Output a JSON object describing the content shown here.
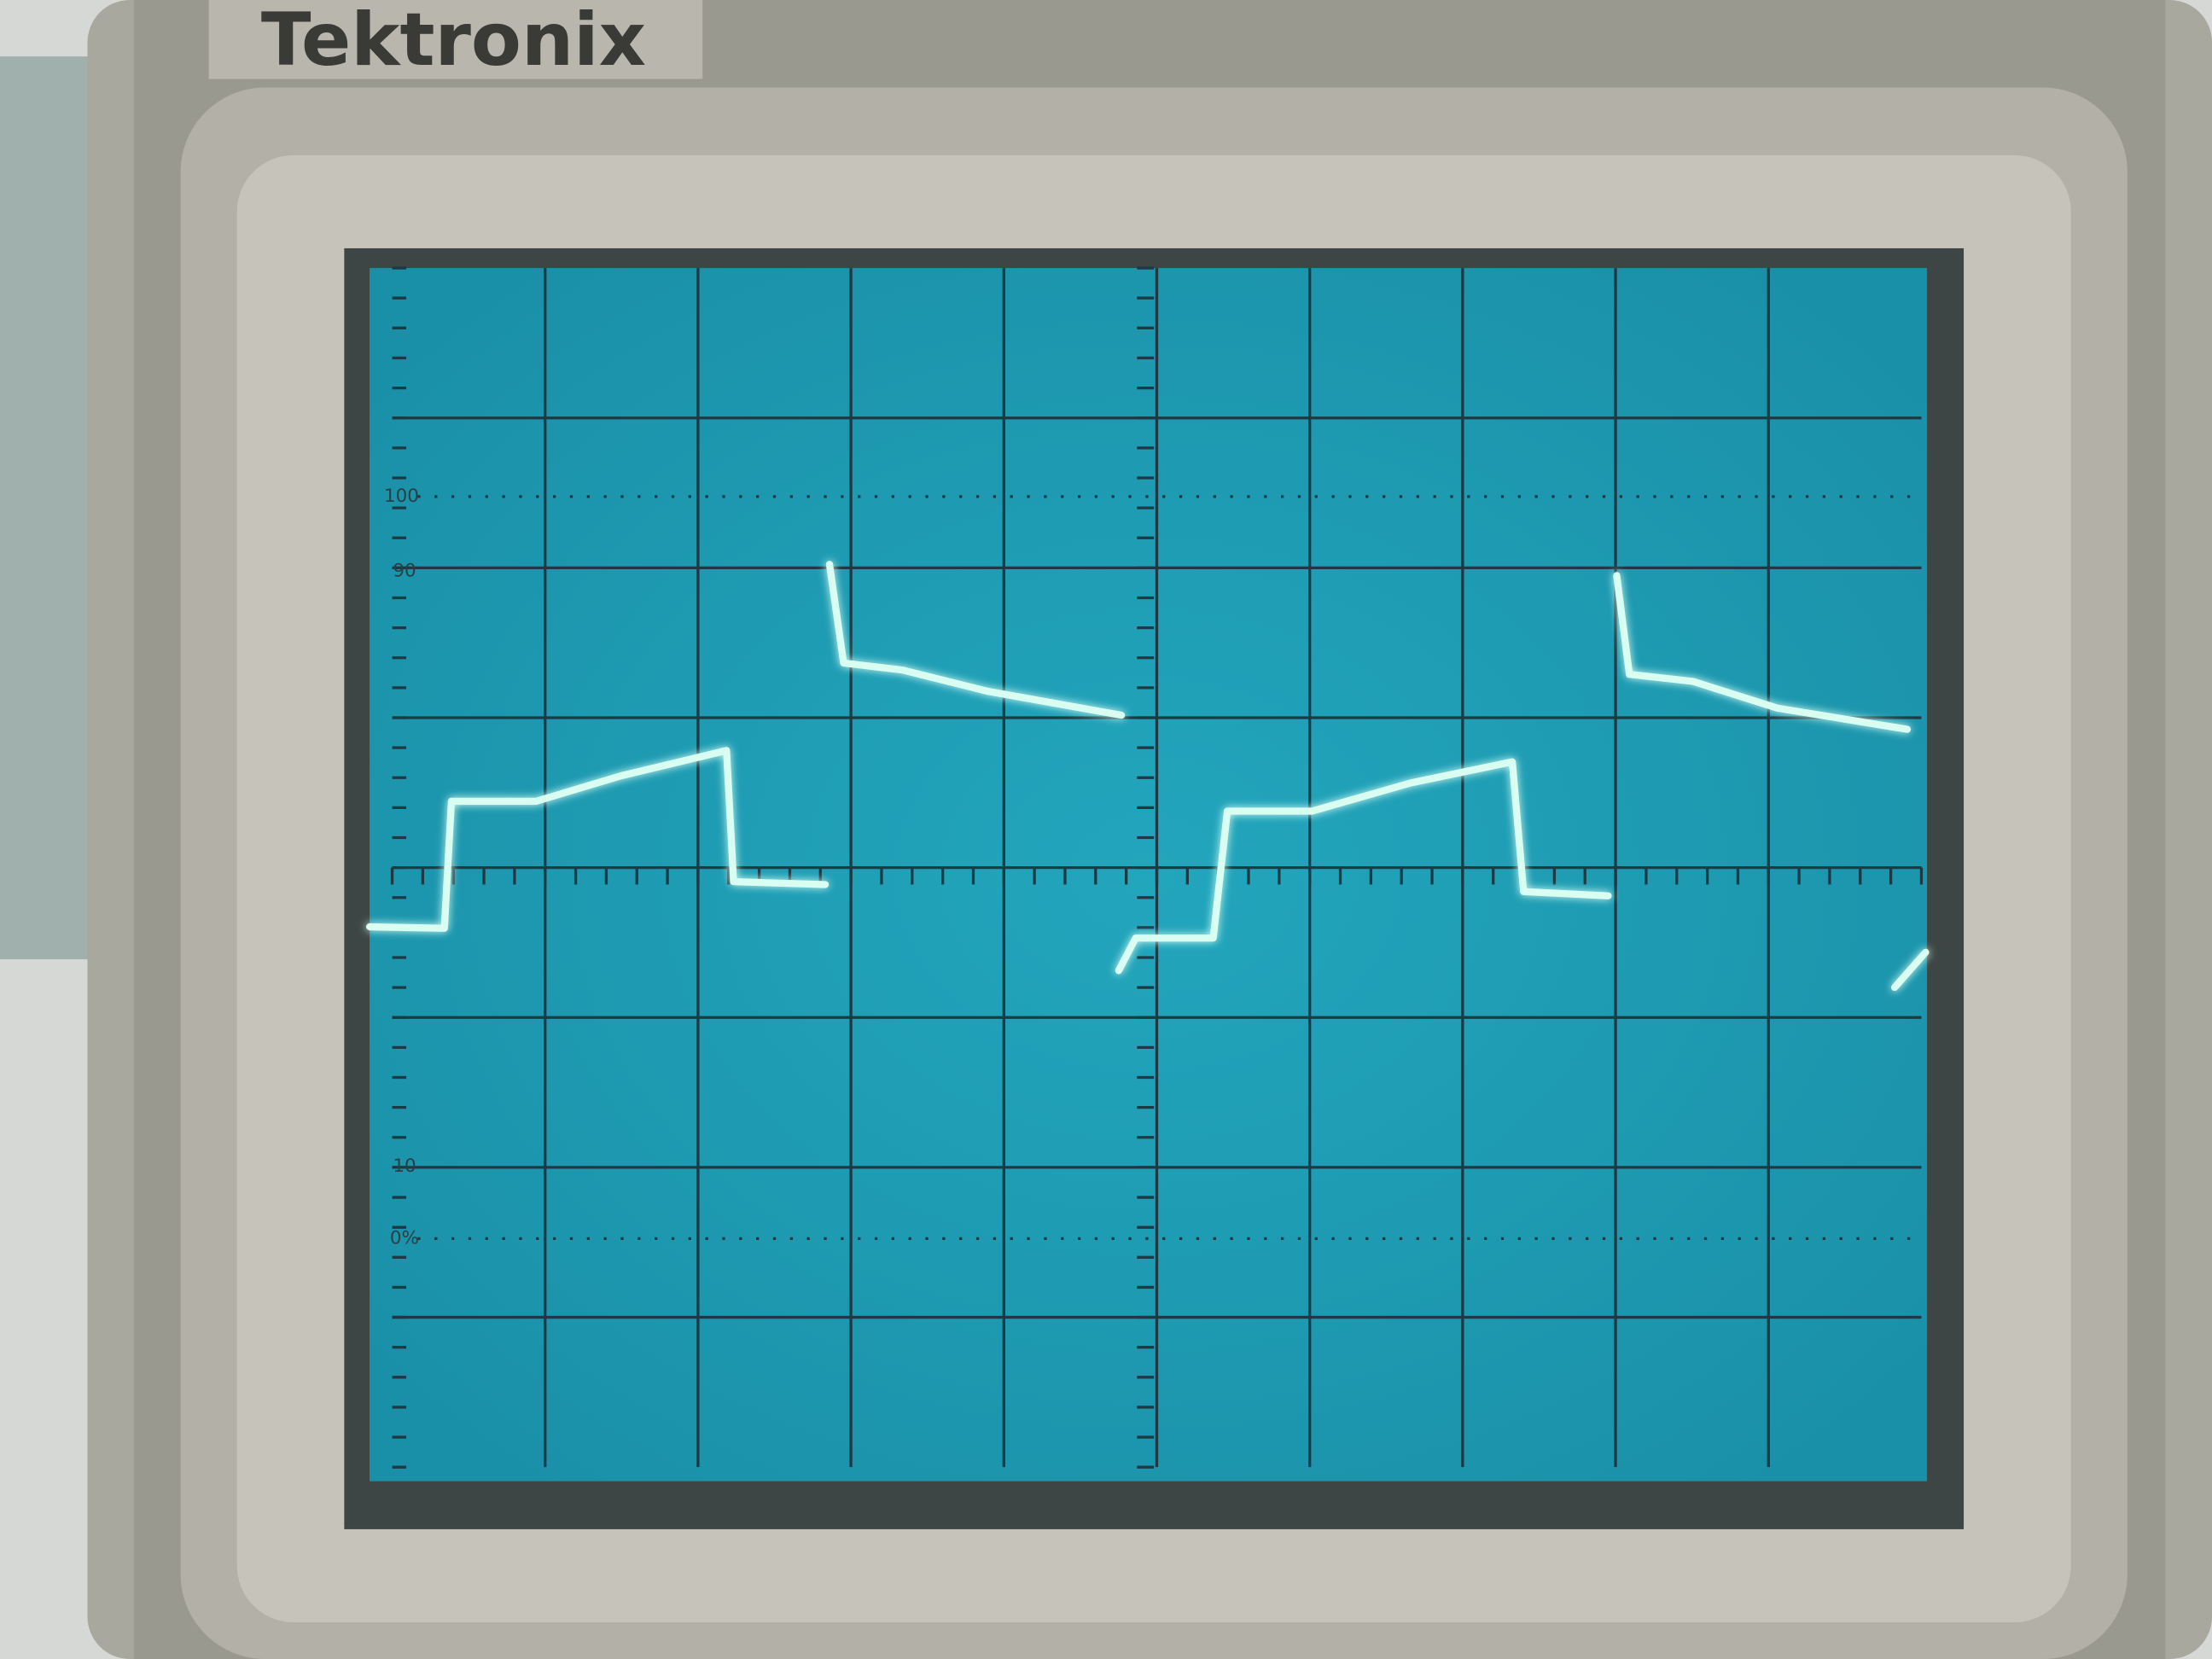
{
  "brand": "Tektronix",
  "graticule_labels": [
    "100",
    "90",
    "10",
    "0%"
  ]
}
